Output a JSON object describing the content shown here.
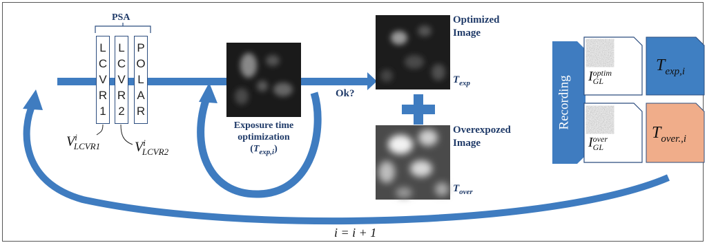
{
  "psa": {
    "label": "PSA",
    "boxes": [
      {
        "letters": [
          "L",
          "C",
          "V",
          "R",
          "1"
        ]
      },
      {
        "letters": [
          "L",
          "C",
          "V",
          "R",
          "2"
        ]
      },
      {
        "letters": [
          "P",
          "O",
          "L",
          "A",
          "R"
        ]
      }
    ],
    "v1": {
      "base": "V",
      "sup": "i",
      "sub": "LCVR1"
    },
    "v2": {
      "base": "V",
      "sup": "i",
      "sub": "LCVR2"
    }
  },
  "exposure": {
    "line1": "Exposure time",
    "line2": "optimization",
    "param_open": "(",
    "param_base": "T",
    "param_sub": "exp,i",
    "param_close": ")"
  },
  "decision": {
    "label": "Ok?"
  },
  "optimized": {
    "line1": "Optimized",
    "line2": "Image",
    "t_base": "T",
    "t_sub": "exp"
  },
  "overexposed": {
    "line1": "Overexpozed",
    "line2": "Image",
    "t_base": "T",
    "t_sub": "over"
  },
  "recording": {
    "label": "Recording",
    "doc1": {
      "base": "I",
      "sup": "optim",
      "sub": "GL"
    },
    "doc2": {
      "base": "I",
      "sup": "over",
      "sub": "GL"
    },
    "t1": {
      "base": "T",
      "sub": "exp,i"
    },
    "t2": {
      "base": "T",
      "sub": "over.,i"
    }
  },
  "loop": {
    "label": "i = i + 1"
  },
  "colors": {
    "arrow": "#3f7cc0",
    "navy": "#1f3a68",
    "blue_doc": "#3f7fc2",
    "salmon_doc": "#f0ad8a",
    "record_bar": "#3f7cc0"
  }
}
